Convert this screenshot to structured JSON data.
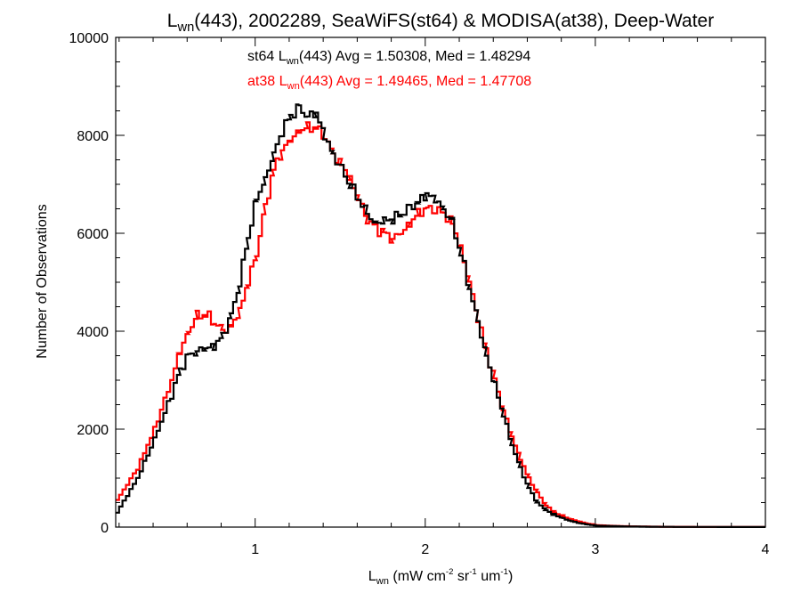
{
  "chart_data": {
    "type": "line",
    "title": {
      "L": "L",
      "L_sub": "wn",
      "rest": "(443), 2002289, SeaWiFS(st64) & MODISA(at38), Deep-Water"
    },
    "xlabel": {
      "L": "L",
      "L_sub": "wn",
      "p1": " (mW cm",
      "s1": "-2",
      "p2": " sr",
      "s2": "-1",
      "p3": " um",
      "s3": "-1",
      "p4": ")"
    },
    "ylabel": "Number of Observations",
    "xlim": [
      0.18,
      4.0
    ],
    "ylim": [
      0,
      10000
    ],
    "xticks": [
      1,
      2,
      3,
      4
    ],
    "xtick_labels": [
      "1",
      "2",
      "3",
      "4"
    ],
    "yticks": [
      0,
      2000,
      4000,
      6000,
      8000,
      10000
    ],
    "ytick_labels": [
      "0",
      "2000",
      "4000",
      "6000",
      "8000",
      "10000"
    ],
    "series": [
      {
        "name": "st64",
        "color": "#000000",
        "label": {
          "p1": "st64 L",
          "sub": "wn",
          "p2": "(443) Avg = 1.50308, Med = 1.48294"
        },
        "x": [
          0.18,
          0.3,
          0.4,
          0.5,
          0.55,
          0.6,
          0.65,
          0.7,
          0.75,
          0.8,
          0.85,
          0.9,
          0.95,
          1.0,
          1.05,
          1.1,
          1.15,
          1.2,
          1.25,
          1.3,
          1.35,
          1.4,
          1.45,
          1.5,
          1.55,
          1.6,
          1.65,
          1.7,
          1.75,
          1.8,
          1.85,
          1.9,
          1.95,
          2.0,
          2.05,
          2.1,
          2.15,
          2.2,
          2.25,
          2.3,
          2.35,
          2.4,
          2.45,
          2.5,
          2.55,
          2.6,
          2.65,
          2.7,
          2.75,
          2.8,
          2.85,
          2.9,
          2.95,
          3.0,
          3.1,
          3.2,
          3.3,
          3.4,
          3.6,
          4.0
        ],
        "y": [
          300,
          1000,
          1800,
          2700,
          3200,
          3500,
          3600,
          3650,
          3700,
          3900,
          4300,
          5000,
          5900,
          6700,
          7100,
          7600,
          8100,
          8400,
          8550,
          8400,
          8450,
          8000,
          7600,
          7300,
          7000,
          6700,
          6400,
          6200,
          6250,
          6300,
          6400,
          6500,
          6650,
          6800,
          6700,
          6500,
          6200,
          5600,
          4900,
          4200,
          3500,
          2900,
          2300,
          1700,
          1200,
          800,
          500,
          350,
          250,
          180,
          120,
          80,
          50,
          30,
          20,
          12,
          8,
          5,
          3,
          2
        ]
      },
      {
        "name": "at38",
        "color": "#ff0000",
        "label": {
          "p1": "at38 L",
          "sub": "wn",
          "p2": "(443) Avg = 1.49465, Med = 1.47708"
        },
        "x": [
          0.18,
          0.3,
          0.4,
          0.5,
          0.55,
          0.6,
          0.65,
          0.7,
          0.75,
          0.8,
          0.85,
          0.9,
          0.95,
          1.0,
          1.05,
          1.1,
          1.15,
          1.2,
          1.25,
          1.3,
          1.35,
          1.4,
          1.45,
          1.5,
          1.55,
          1.6,
          1.65,
          1.7,
          1.75,
          1.8,
          1.85,
          1.9,
          1.95,
          2.0,
          2.05,
          2.1,
          2.15,
          2.2,
          2.25,
          2.3,
          2.35,
          2.4,
          2.45,
          2.5,
          2.55,
          2.6,
          2.65,
          2.7,
          2.75,
          2.8,
          2.85,
          2.9,
          2.95,
          3.0,
          3.1,
          3.2,
          3.3,
          3.4,
          3.6,
          4.0
        ],
        "y": [
          550,
          1200,
          2000,
          3000,
          3600,
          4000,
          4300,
          4350,
          4200,
          4000,
          4100,
          4400,
          5000,
          5600,
          6500,
          7300,
          7700,
          7900,
          8100,
          8150,
          8150,
          8000,
          7600,
          7400,
          7100,
          6700,
          6300,
          6100,
          6000,
          5900,
          6000,
          6200,
          6400,
          6500,
          6500,
          6400,
          6200,
          5700,
          5000,
          4300,
          3600,
          3000,
          2400,
          1850,
          1400,
          1000,
          700,
          450,
          300,
          220,
          160,
          110,
          70,
          40,
          25,
          15,
          10,
          7,
          4,
          3
        ]
      }
    ],
    "grid": false
  }
}
